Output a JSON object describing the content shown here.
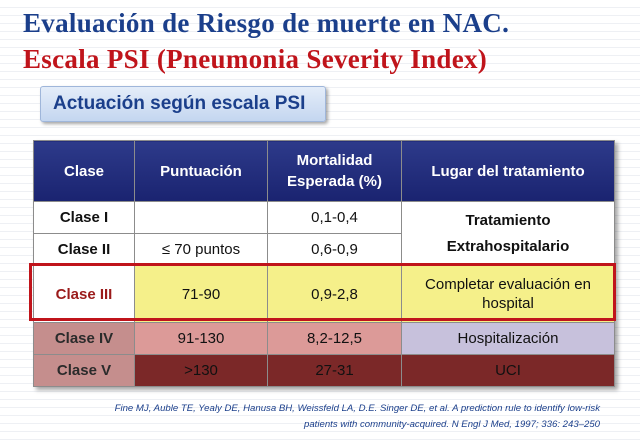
{
  "title": {
    "line1": "Evaluación de Riesgo de muerte en NAC.",
    "line2": "Escala PSI (Pneumonia Severity Index)"
  },
  "subtitle": "Actuación según escala PSI",
  "table": {
    "headers": [
      "Clase",
      "Puntuación",
      "Mortalidad Esperada (%)",
      "Lugar del tratamiento"
    ],
    "rows": [
      {
        "clase": "Clase I",
        "puntuacion": "",
        "mortalidad": "0,1-0,4"
      },
      {
        "clase": "Clase II",
        "puntuacion": "≤ 70 puntos",
        "mortalidad": "0,6-0,9"
      },
      {
        "clase": "Clase III",
        "puntuacion": "71-90",
        "mortalidad": "0,9-2,8",
        "lugar": "Completar evaluación en hospital"
      },
      {
        "clase": "Clase IV",
        "puntuacion": "91-130",
        "mortalidad": "8,2-12,5",
        "lugar": "Hospitalización"
      },
      {
        "clase": "Clase V",
        "puntuacion": ">130",
        "mortalidad": "27-31",
        "lugar": "UCI"
      }
    ],
    "lugar_i_ii": {
      "line1": "Tratamiento",
      "line2": "Extrahospitalario"
    }
  },
  "reference": {
    "line1": "Fine MJ, Auble TE, Yealy DE, Hanusa BH, Weissfeld LA, D.E. Singer DE, et al. A prediction rule to identify low-risk",
    "line2": "patients with community-acquired. N Engl J Med, 1997; 336: 243–250"
  },
  "colors": {
    "title_blue": "#1b3f8b",
    "title_red": "#c0141b",
    "header_navy": "#1a2370",
    "class3_yellow": "#f5f08a",
    "class4_rose": "#dc9a98",
    "class4_lavender": "#c7c1dc",
    "class5_maroon": "#7b2828",
    "class5_text_gold": "#f2d65a"
  }
}
